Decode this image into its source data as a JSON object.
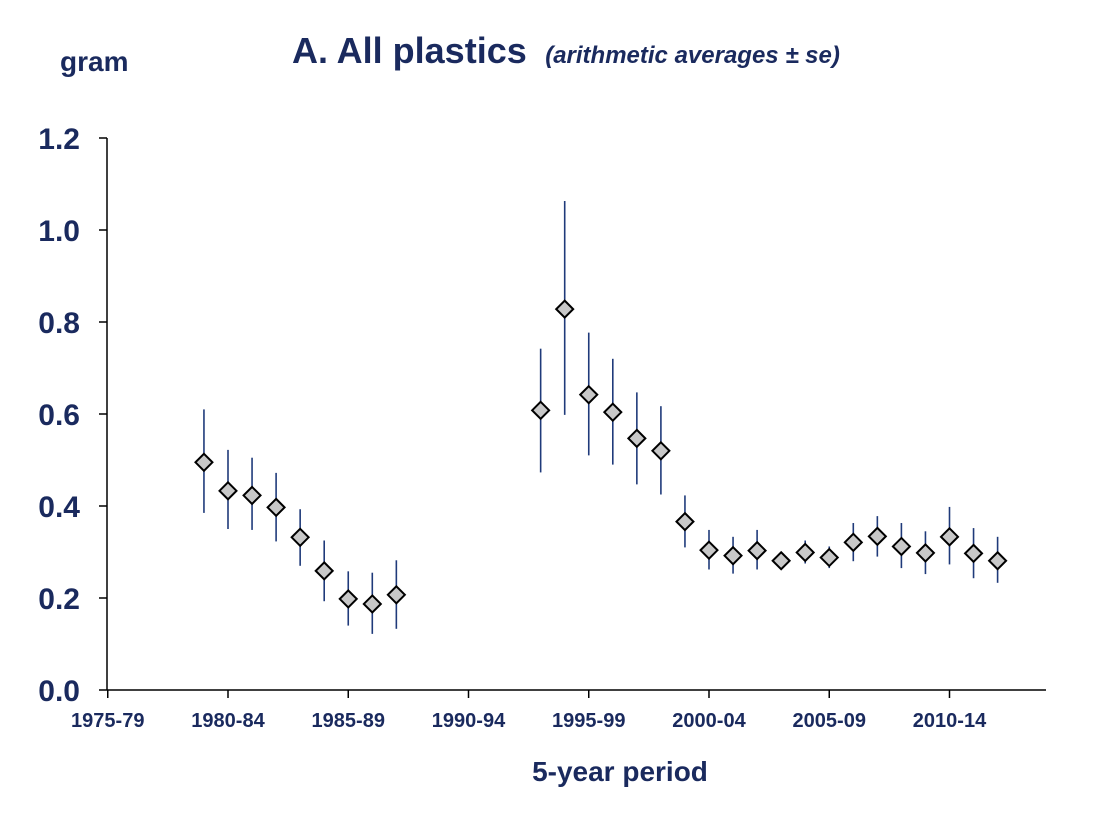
{
  "chart_data": {
    "type": "scatter",
    "title": "A.  All plastics",
    "subtitle": "(arithmetic averages ± se)",
    "ylabel": "gram",
    "xlabel": "5-year period",
    "ylim": [
      0,
      1.2
    ],
    "yticks": [
      "0.0",
      "0.2",
      "0.4",
      "0.6",
      "0.8",
      "1.0",
      "1.2"
    ],
    "xlim": [
      1975,
      2015
    ],
    "xticks": [
      {
        "label": "1975-79",
        "year": 1975
      },
      {
        "label": "1980-84",
        "year": 1980
      },
      {
        "label": "1985-89",
        "year": 1985
      },
      {
        "label": "1990-94",
        "year": 1990
      },
      {
        "label": "1995-99",
        "year": 1995
      },
      {
        "label": "2000-04",
        "year": 2000
      },
      {
        "label": "2005-09",
        "year": 2005
      },
      {
        "label": "2010-14",
        "year": 2010
      }
    ],
    "marker": "diamond",
    "marker_color": "#c8c8c8",
    "errorbar_color": "#1f3a7a",
    "axis_color": "#000000",
    "series": [
      {
        "name": "All plastics",
        "points": [
          {
            "x": 1979,
            "y": 0.495,
            "lo": 0.385,
            "hi": 0.61
          },
          {
            "x": 1980,
            "y": 0.433,
            "lo": 0.35,
            "hi": 0.522
          },
          {
            "x": 1981,
            "y": 0.423,
            "lo": 0.348,
            "hi": 0.505
          },
          {
            "x": 1982,
            "y": 0.397,
            "lo": 0.323,
            "hi": 0.472
          },
          {
            "x": 1983,
            "y": 0.332,
            "lo": 0.27,
            "hi": 0.393
          },
          {
            "x": 1984,
            "y": 0.259,
            "lo": 0.193,
            "hi": 0.325
          },
          {
            "x": 1985,
            "y": 0.198,
            "lo": 0.14,
            "hi": 0.258
          },
          {
            "x": 1986,
            "y": 0.187,
            "lo": 0.122,
            "hi": 0.255
          },
          {
            "x": 1987,
            "y": 0.207,
            "lo": 0.133,
            "hi": 0.282
          },
          {
            "x": 1993,
            "y": 0.608,
            "lo": 0.473,
            "hi": 0.742
          },
          {
            "x": 1994,
            "y": 0.828,
            "lo": 0.598,
            "hi": 1.063
          },
          {
            "x": 1995,
            "y": 0.642,
            "lo": 0.51,
            "hi": 0.777
          },
          {
            "x": 1996,
            "y": 0.604,
            "lo": 0.49,
            "hi": 0.72
          },
          {
            "x": 1997,
            "y": 0.547,
            "lo": 0.447,
            "hi": 0.647
          },
          {
            "x": 1998,
            "y": 0.52,
            "lo": 0.425,
            "hi": 0.617
          },
          {
            "x": 1999,
            "y": 0.366,
            "lo": 0.31,
            "hi": 0.423
          },
          {
            "x": 2000,
            "y": 0.304,
            "lo": 0.262,
            "hi": 0.348
          },
          {
            "x": 2001,
            "y": 0.292,
            "lo": 0.253,
            "hi": 0.333
          },
          {
            "x": 2002,
            "y": 0.303,
            "lo": 0.262,
            "hi": 0.348
          },
          {
            "x": 2003,
            "y": 0.281,
            "lo": 0.265,
            "hi": 0.298
          },
          {
            "x": 2004,
            "y": 0.299,
            "lo": 0.275,
            "hi": 0.325
          },
          {
            "x": 2005,
            "y": 0.288,
            "lo": 0.265,
            "hi": 0.312
          },
          {
            "x": 2006,
            "y": 0.321,
            "lo": 0.28,
            "hi": 0.363
          },
          {
            "x": 2007,
            "y": 0.334,
            "lo": 0.29,
            "hi": 0.378
          },
          {
            "x": 2008,
            "y": 0.312,
            "lo": 0.265,
            "hi": 0.363
          },
          {
            "x": 2009,
            "y": 0.298,
            "lo": 0.252,
            "hi": 0.345
          },
          {
            "x": 2010,
            "y": 0.333,
            "lo": 0.273,
            "hi": 0.398
          },
          {
            "x": 2011,
            "y": 0.297,
            "lo": 0.243,
            "hi": 0.352
          },
          {
            "x": 2012,
            "y": 0.281,
            "lo": 0.233,
            "hi": 0.333
          }
        ]
      }
    ]
  }
}
